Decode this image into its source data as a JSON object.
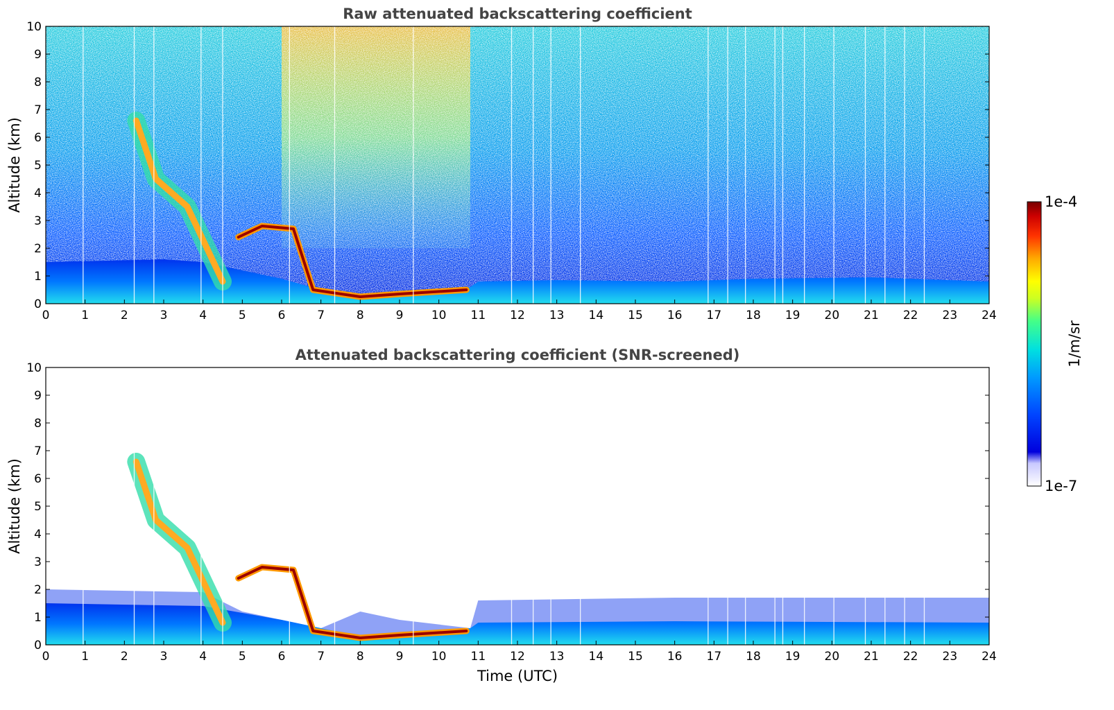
{
  "colors": {
    "background": "#ffffff",
    "title_text": "#444444",
    "colormap": [
      "#ffffff",
      "#0000dd",
      "#0033ff",
      "#0077ff",
      "#00bbff",
      "#00eedd",
      "#33ff99",
      "#aaff44",
      "#ffff00",
      "#ffaa00",
      "#ff4400",
      "#cc0000",
      "#770000"
    ]
  },
  "chart_data": [
    {
      "type": "heatmap",
      "title": "Raw attenuated backscattering coefficient",
      "xlabel": "",
      "ylabel": "Altitude (km)",
      "xlim": [
        0,
        24
      ],
      "ylim": [
        0,
        10
      ],
      "xticks": [
        "0",
        "1",
        "2",
        "3",
        "4",
        "5",
        "6",
        "7",
        "8",
        "9",
        "10",
        "11",
        "12",
        "13",
        "14",
        "15",
        "16",
        "17",
        "18",
        "19",
        "20",
        "21",
        "22",
        "23",
        "24"
      ],
      "yticks": [
        "0",
        "1",
        "2",
        "3",
        "4",
        "5",
        "6",
        "7",
        "8",
        "9",
        "10"
      ],
      "grid": false,
      "features": {
        "boundary_layer_top_km": [
          [
            0,
            1.5
          ],
          [
            3,
            1.6
          ],
          [
            4,
            1.5
          ],
          [
            6,
            0.9
          ],
          [
            7,
            0.5
          ],
          [
            8,
            0.3
          ],
          [
            9,
            0.4
          ],
          [
            10.8,
            0.6
          ],
          [
            11,
            0.8
          ],
          [
            13,
            0.85
          ],
          [
            16,
            0.8
          ],
          [
            18,
            0.9
          ],
          [
            21,
            0.95
          ],
          [
            24,
            0.8
          ]
        ],
        "cloud_streak_km": [
          [
            2.3,
            6.6
          ],
          [
            2.8,
            4.5
          ],
          [
            3.6,
            3.5
          ],
          [
            4.1,
            2.0
          ],
          [
            4.5,
            0.8
          ]
        ],
        "cloud_layer_km": [
          [
            4.9,
            2.4
          ],
          [
            5.5,
            2.8
          ],
          [
            6.3,
            2.7
          ],
          [
            6.8,
            0.5
          ],
          [
            8,
            0.25
          ],
          [
            9,
            0.35
          ],
          [
            10.7,
            0.5
          ]
        ],
        "noise_enhanced_hours": [
          6,
          10.8
        ]
      }
    },
    {
      "type": "heatmap",
      "title": "Attenuated backscattering coefficient (SNR-screened)",
      "xlabel": "Time (UTC)",
      "ylabel": "Altitude (km)",
      "xlim": [
        0,
        24
      ],
      "ylim": [
        0,
        10
      ],
      "xticks": [
        "0",
        "1",
        "2",
        "3",
        "4",
        "5",
        "6",
        "7",
        "8",
        "9",
        "10",
        "11",
        "12",
        "13",
        "14",
        "15",
        "16",
        "17",
        "18",
        "19",
        "20",
        "21",
        "22",
        "23",
        "24"
      ],
      "yticks": [
        "0",
        "1",
        "2",
        "3",
        "4",
        "5",
        "6",
        "7",
        "8",
        "9",
        "10"
      ],
      "grid": false,
      "features": {
        "screened_layer_top_km": [
          [
            0,
            2.0
          ],
          [
            4,
            1.9
          ],
          [
            5,
            1.2
          ],
          [
            6,
            0.9
          ],
          [
            7,
            0.6
          ],
          [
            8,
            1.2
          ],
          [
            9,
            0.9
          ],
          [
            10.8,
            0.6
          ],
          [
            11,
            1.6
          ],
          [
            16,
            1.7
          ],
          [
            24,
            1.7
          ]
        ],
        "boundary_layer_top_km": [
          [
            0,
            1.5
          ],
          [
            4,
            1.4
          ],
          [
            6,
            0.9
          ],
          [
            8,
            0.3
          ],
          [
            10.8,
            0.6
          ],
          [
            11,
            0.8
          ],
          [
            16,
            0.85
          ],
          [
            24,
            0.8
          ]
        ]
      }
    }
  ],
  "colorbar": {
    "max_label": "1e-4",
    "min_label": "1e-7",
    "label": "1/m/sr"
  }
}
